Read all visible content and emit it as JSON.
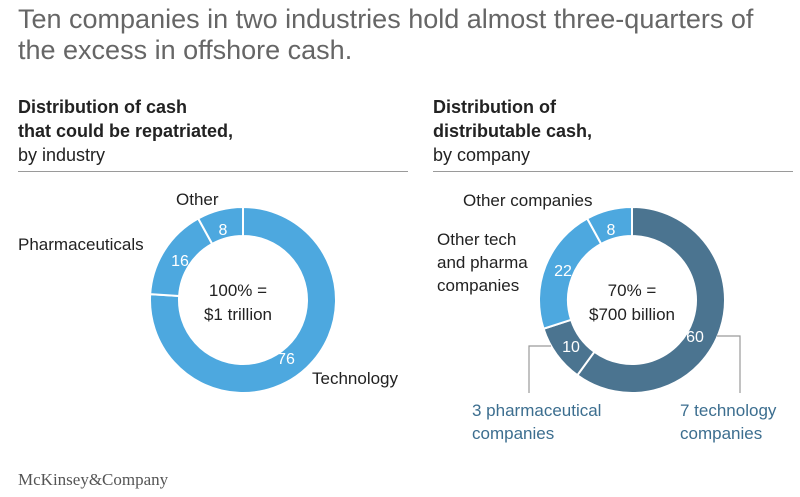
{
  "title": "Ten companies in two industries hold almost three-quarters of the excess in offshore cash.",
  "colors": {
    "light_blue": "#4da8df",
    "dark_blue": "#4b7490",
    "blue_text": "#3c6e8f"
  },
  "chart_data": [
    {
      "type": "pie",
      "heading_bold": "Distribution of cash that could be repatriated,",
      "heading_bold_lines": [
        "Distribution of cash",
        "that could be repatriated,"
      ],
      "heading_normal": "by industry",
      "center_lines": [
        "100% =",
        "$1 trillion"
      ],
      "slices": [
        {
          "label": "Technology",
          "value": 76,
          "color": "#4da8df"
        },
        {
          "label": "Pharmaceuticals",
          "value": 16,
          "color": "#4da8df"
        },
        {
          "label": "Other",
          "value": 8,
          "color": "#4da8df"
        }
      ]
    },
    {
      "type": "pie",
      "heading_bold": "Distribution of distributable cash,",
      "heading_bold_lines": [
        "Distribution of",
        "distributable cash,"
      ],
      "heading_normal": "by company",
      "center_lines": [
        "70% =",
        "$700 billion"
      ],
      "slices": [
        {
          "label": "7 technology companies",
          "label_lines": [
            "7 technology",
            "companies"
          ],
          "value": 60,
          "color": "#4b7490"
        },
        {
          "label": "3 pharmaceutical companies",
          "label_lines": [
            "3 pharmaceutical",
            "companies"
          ],
          "value": 10,
          "color": "#4b7490"
        },
        {
          "label": "Other tech and pharma companies",
          "label_lines": [
            "Other tech",
            "and pharma",
            "companies"
          ],
          "value": 22,
          "color": "#4da8df"
        },
        {
          "label": "Other companies",
          "label_lines": [
            "Other companies"
          ],
          "value": 8,
          "color": "#4da8df"
        }
      ]
    }
  ],
  "footer": {
    "logo": "McKinsey&Company"
  }
}
